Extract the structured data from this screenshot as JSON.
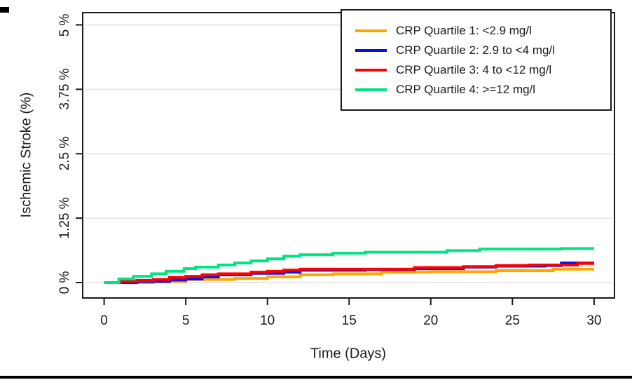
{
  "figure": {
    "background": "#FFFFFF",
    "axis_color": "#1A1A1A",
    "bottom_bar_color": "#000000"
  },
  "chart_data": {
    "type": "line",
    "subtype": "step",
    "title": "",
    "xlabel": "Time (Days)",
    "ylabel": "Ischemic Stroke (%)",
    "xlim": [
      0,
      30
    ],
    "ylim": [
      0,
      5
    ],
    "x_ticks": [
      0,
      5,
      10,
      15,
      20,
      25,
      30
    ],
    "x_tick_labels": [
      "0",
      "5",
      "10",
      "15",
      "20",
      "25",
      "30"
    ],
    "y_ticks": [
      0,
      1.25,
      2.5,
      3.75,
      5
    ],
    "y_tick_labels": [
      "0 %",
      "1.25 %",
      "2.5 %",
      "3.75 %",
      "5 %"
    ],
    "grid": "horizontal",
    "gridline_color": "#E9E9E9",
    "legend_position": "top-right",
    "series": [
      {
        "name": "CRP Quartile 1: <2.9 mg/l",
        "color": "#FFA500",
        "points": [
          [
            0,
            0
          ],
          [
            3,
            0.02
          ],
          [
            5,
            0.06
          ],
          [
            8,
            0.08
          ],
          [
            10,
            0.11
          ],
          [
            12,
            0.15
          ],
          [
            14,
            0.17
          ],
          [
            17,
            0.2
          ],
          [
            20,
            0.21
          ],
          [
            24,
            0.23
          ],
          [
            27.5,
            0.26
          ],
          [
            30,
            0.26
          ]
        ]
      },
      {
        "name": "CRP Quartile 2: 2.9 to <4 mg/l",
        "color": "#0B0BE8",
        "points": [
          [
            0,
            0
          ],
          [
            2,
            0.02
          ],
          [
            4,
            0.05
          ],
          [
            5,
            0.07
          ],
          [
            6,
            0.11
          ],
          [
            7,
            0.15
          ],
          [
            9,
            0.18
          ],
          [
            11,
            0.2
          ],
          [
            12,
            0.24
          ],
          [
            16,
            0.25
          ],
          [
            19,
            0.27
          ],
          [
            22,
            0.3
          ],
          [
            24,
            0.32
          ],
          [
            27,
            0.33
          ],
          [
            28,
            0.38
          ],
          [
            30,
            0.38
          ]
        ]
      },
      {
        "name": "CRP Quartile 3: 4 to <12 mg/l",
        "color": "#FF0000",
        "points": [
          [
            0,
            0
          ],
          [
            1,
            0.02
          ],
          [
            2,
            0.04
          ],
          [
            3,
            0.06
          ],
          [
            4,
            0.1
          ],
          [
            5,
            0.12
          ],
          [
            6,
            0.15
          ],
          [
            7,
            0.17
          ],
          [
            9,
            0.2
          ],
          [
            10,
            0.22
          ],
          [
            11,
            0.24
          ],
          [
            12,
            0.26
          ],
          [
            19,
            0.29
          ],
          [
            22,
            0.31
          ],
          [
            24,
            0.33
          ],
          [
            26,
            0.34
          ],
          [
            29,
            0.37
          ],
          [
            30,
            0.37
          ]
        ]
      },
      {
        "name": "CRP Quartile 4: >=12 mg/l",
        "color": "#00E582",
        "points": [
          [
            0,
            0
          ],
          [
            0.9,
            0.07
          ],
          [
            1.8,
            0.12
          ],
          [
            2.9,
            0.17
          ],
          [
            3.8,
            0.22
          ],
          [
            4.9,
            0.27
          ],
          [
            5.6,
            0.3
          ],
          [
            7,
            0.34
          ],
          [
            8,
            0.38
          ],
          [
            9,
            0.42
          ],
          [
            10,
            0.46
          ],
          [
            11,
            0.51
          ],
          [
            12,
            0.54
          ],
          [
            14,
            0.57
          ],
          [
            16,
            0.59
          ],
          [
            21,
            0.62
          ],
          [
            23,
            0.65
          ],
          [
            28,
            0.66
          ],
          [
            30,
            0.66
          ]
        ]
      }
    ],
    "legend_order": [
      0,
      1,
      2,
      3
    ]
  }
}
